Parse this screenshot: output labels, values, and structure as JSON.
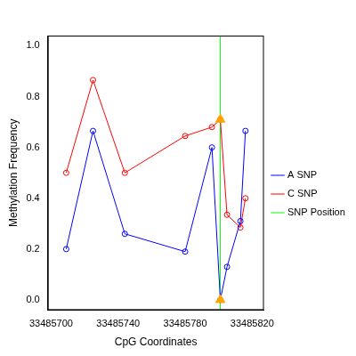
{
  "chart_data": {
    "type": "line",
    "x_label": "CpG Coordinates",
    "y_label": "Methylation Frequency",
    "x": [
      33485709,
      33485725,
      33485744,
      33485780,
      33485796,
      33485801,
      33485805,
      33485813,
      33485816
    ],
    "series": [
      {
        "name": "A SNP",
        "color": "#0000FF",
        "marker": "circle",
        "values": [
          0.2,
          0.665,
          0.26,
          0.19,
          0.6,
          0.0,
          0.13,
          0.31,
          0.665
        ]
      },
      {
        "name": "C SNP",
        "color": "#FF0000",
        "marker": "circle",
        "values": [
          0.5,
          0.865,
          0.5,
          0.645,
          0.68,
          0.71,
          0.335,
          0.285,
          0.4
        ]
      }
    ],
    "snp_position": {
      "name": "SNP Position",
      "color": "#00FF00",
      "x": 33485801
    },
    "snp_markers": {
      "color": "#FFA500",
      "marker": "triangle",
      "x": 33485801,
      "values": [
        0.71,
        0.0
      ]
    },
    "xlim": [
      33485698,
      33485827
    ],
    "ylim": [
      -0.04,
      1.04
    ],
    "xticks": [
      33485700,
      33485740,
      33485780,
      33485820
    ],
    "yticks": [
      {
        "value": 0,
        "label": "0.0"
      },
      {
        "value": 0.2,
        "label": "0.2"
      },
      {
        "value": 0.4,
        "label": "0.4"
      },
      {
        "value": 0.6,
        "label": "0.6"
      },
      {
        "value": 0.8,
        "label": "0.8"
      },
      {
        "value": 1,
        "label": "1.0"
      }
    ],
    "grid": false,
    "legend": "right"
  }
}
